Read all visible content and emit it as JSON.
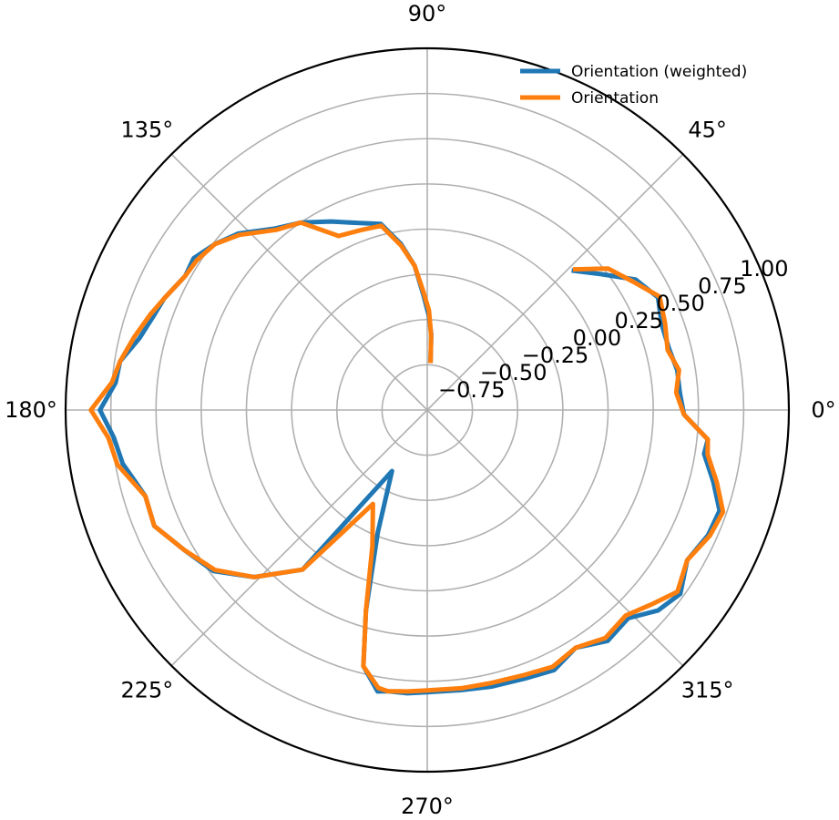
{
  "chart_data": {
    "type": "line",
    "projection": "polar",
    "title": "",
    "r_range": [
      -1.0,
      1.0
    ],
    "r_ticks": [
      -0.75,
      -0.5,
      -0.25,
      0.0,
      0.25,
      0.5,
      0.75,
      1.0
    ],
    "r_tick_labels": [
      "−0.75",
      "−0.50",
      "−0.25",
      "0.00",
      "0.25",
      "0.50",
      "0.75",
      "1.00"
    ],
    "r_label_angle_deg": 22.5,
    "theta_ticks_deg": [
      0,
      45,
      90,
      135,
      180,
      225,
      270,
      315
    ],
    "theta_tick_labels": [
      "0°",
      "45°",
      "90°",
      "135°",
      "180°",
      "225°",
      "270°",
      "315°"
    ],
    "grid": true,
    "legend_position": "upper right",
    "series": [
      {
        "name": "Orientation (weighted)",
        "color": "#1f77b4",
        "theta_deg": [
          86,
          87,
          89,
          92,
          95,
          99,
          104,
          110,
          117,
          124,
          130,
          137,
          142,
          147,
          151,
          157,
          161,
          166,
          171,
          175,
          180,
          185,
          190,
          197,
          203,
          210,
          217,
          224,
          232,
          240,
          248,
          253,
          256,
          260,
          262,
          266,
          270,
          277,
          283,
          290,
          296,
          302,
          308,
          314,
          319,
          324,
          330,
          336,
          341,
          346,
          351,
          354,
          359,
          4,
          9,
          14,
          20,
          26,
          32,
          38,
          44
        ],
        "r": [
          -0.74,
          -0.58,
          -0.48,
          -0.36,
          -0.2,
          -0.07,
          0.06,
          0.1,
          0.17,
          0.25,
          0.31,
          0.43,
          0.49,
          0.54,
          0.53,
          0.58,
          0.6,
          0.64,
          0.72,
          0.73,
          0.81,
          0.74,
          0.71,
          0.63,
          0.64,
          0.55,
          0.48,
          0.33,
          0.12,
          -0.61,
          -0.27,
          0.16,
          0.46,
          0.58,
          0.57,
          0.57,
          0.56,
          0.56,
          0.57,
          0.58,
          0.6,
          0.55,
          0.62,
          0.6,
          0.69,
          0.73,
          0.66,
          0.7,
          0.71,
          0.63,
          0.55,
          0.56,
          0.42,
          0.4,
          0.4,
          0.38,
          0.38,
          0.42,
          0.36,
          0.22,
          0.11
        ]
      },
      {
        "name": "Orientation",
        "color": "#ff7f0e",
        "theta_deg": [
          86,
          87,
          89,
          92,
          95,
          99,
          104,
          110,
          117,
          124,
          130,
          137,
          142,
          147,
          151,
          157,
          161,
          166,
          171,
          175,
          180,
          185,
          190,
          197,
          203,
          210,
          217,
          224,
          232,
          240,
          248,
          253,
          256,
          260,
          262,
          266,
          270,
          277,
          283,
          290,
          296,
          302,
          308,
          314,
          319,
          324,
          330,
          336,
          341,
          346,
          351,
          354,
          359,
          4,
          9,
          14,
          20,
          26,
          32,
          38,
          44
        ],
        "r": [
          -0.74,
          -0.59,
          -0.45,
          -0.34,
          -0.2,
          -0.08,
          0.05,
          0.06,
          0.08,
          0.25,
          0.3,
          0.42,
          0.49,
          0.52,
          0.53,
          0.58,
          0.62,
          0.67,
          0.72,
          0.75,
          0.86,
          0.77,
          0.74,
          0.63,
          0.64,
          0.55,
          0.47,
          0.33,
          0.12,
          -0.4,
          -0.19,
          0.16,
          0.46,
          0.56,
          0.57,
          0.56,
          0.55,
          0.55,
          0.55,
          0.56,
          0.58,
          0.55,
          0.6,
          0.58,
          0.64,
          0.71,
          0.66,
          0.71,
          0.73,
          0.65,
          0.57,
          0.56,
          0.42,
          0.38,
          0.41,
          0.37,
          0.4,
          0.43,
          0.34,
          0.27,
          0.12
        ]
      }
    ]
  }
}
